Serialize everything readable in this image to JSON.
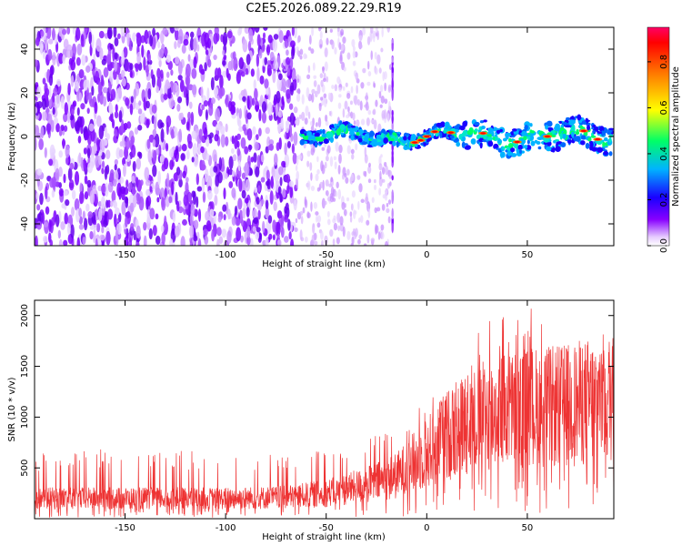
{
  "title": "C2E5.2026.089.22.29.R19",
  "colors": {
    "snr_line": "#ee3333",
    "spectro_background": "#ffffff",
    "colormap": [
      "#ffffff",
      "#d9b3ff",
      "#7a00ff",
      "#1a00ff",
      "#00b3ff",
      "#00ff66",
      "#ffff00",
      "#ff8000",
      "#ff0000"
    ]
  },
  "chart_data": [
    {
      "type": "heatmap",
      "name": "spectrogram",
      "xlabel": "Height of straight line (km)",
      "ylabel": "Frequency (Hz)",
      "xlim": [
        -195,
        93
      ],
      "ylim": [
        -50,
        50
      ],
      "xticks": [
        -150,
        -100,
        -50,
        0,
        50
      ],
      "yticks": [
        -40,
        -20,
        0,
        20,
        40
      ],
      "description_regions": [
        {
          "x_range": [
            -195,
            -65
          ],
          "freq_range": [
            -50,
            50
          ],
          "amplitude": [
            0.05,
            0.2
          ],
          "note": "broadband noise"
        },
        {
          "x_range": [
            -65,
            -18
          ],
          "freq_range": [
            -50,
            50
          ],
          "amplitude": [
            0.02,
            0.1
          ],
          "note": "sparse noise"
        },
        {
          "x_range": [
            -60,
            93
          ],
          "freq_range": [
            -5,
            5
          ],
          "amplitude": [
            0.1,
            0.9
          ],
          "note": "signal trace near 0 Hz"
        }
      ],
      "colorbar": {
        "label": "Normalized spectral amplitude",
        "range": [
          0.0,
          0.95
        ],
        "ticks": [
          0.0,
          0.2,
          0.4,
          0.6,
          0.8
        ]
      }
    },
    {
      "type": "line",
      "name": "snr",
      "xlabel": "Height of straight line (km)",
      "ylabel": "SNR (10 * v/v)",
      "xlim": [
        -195,
        93
      ],
      "ylim": [
        0,
        2150
      ],
      "xticks": [
        -150,
        -100,
        -50,
        0,
        50
      ],
      "yticks": [
        500,
        1000,
        1500,
        2000
      ],
      "envelope": {
        "x": [
          -195,
          -150,
          -100,
          -70,
          -50,
          -30,
          -15,
          0,
          10,
          20,
          35,
          50,
          65,
          80,
          93
        ],
        "mean": [
          200,
          200,
          200,
          210,
          250,
          330,
          420,
          650,
          820,
          950,
          1050,
          1100,
          1100,
          1150,
          1200
        ],
        "max": [
          650,
          700,
          650,
          650,
          700,
          850,
          900,
          1300,
          1200,
          1700,
          2100,
          2150,
          1700,
          1700,
          1800
        ]
      }
    }
  ]
}
